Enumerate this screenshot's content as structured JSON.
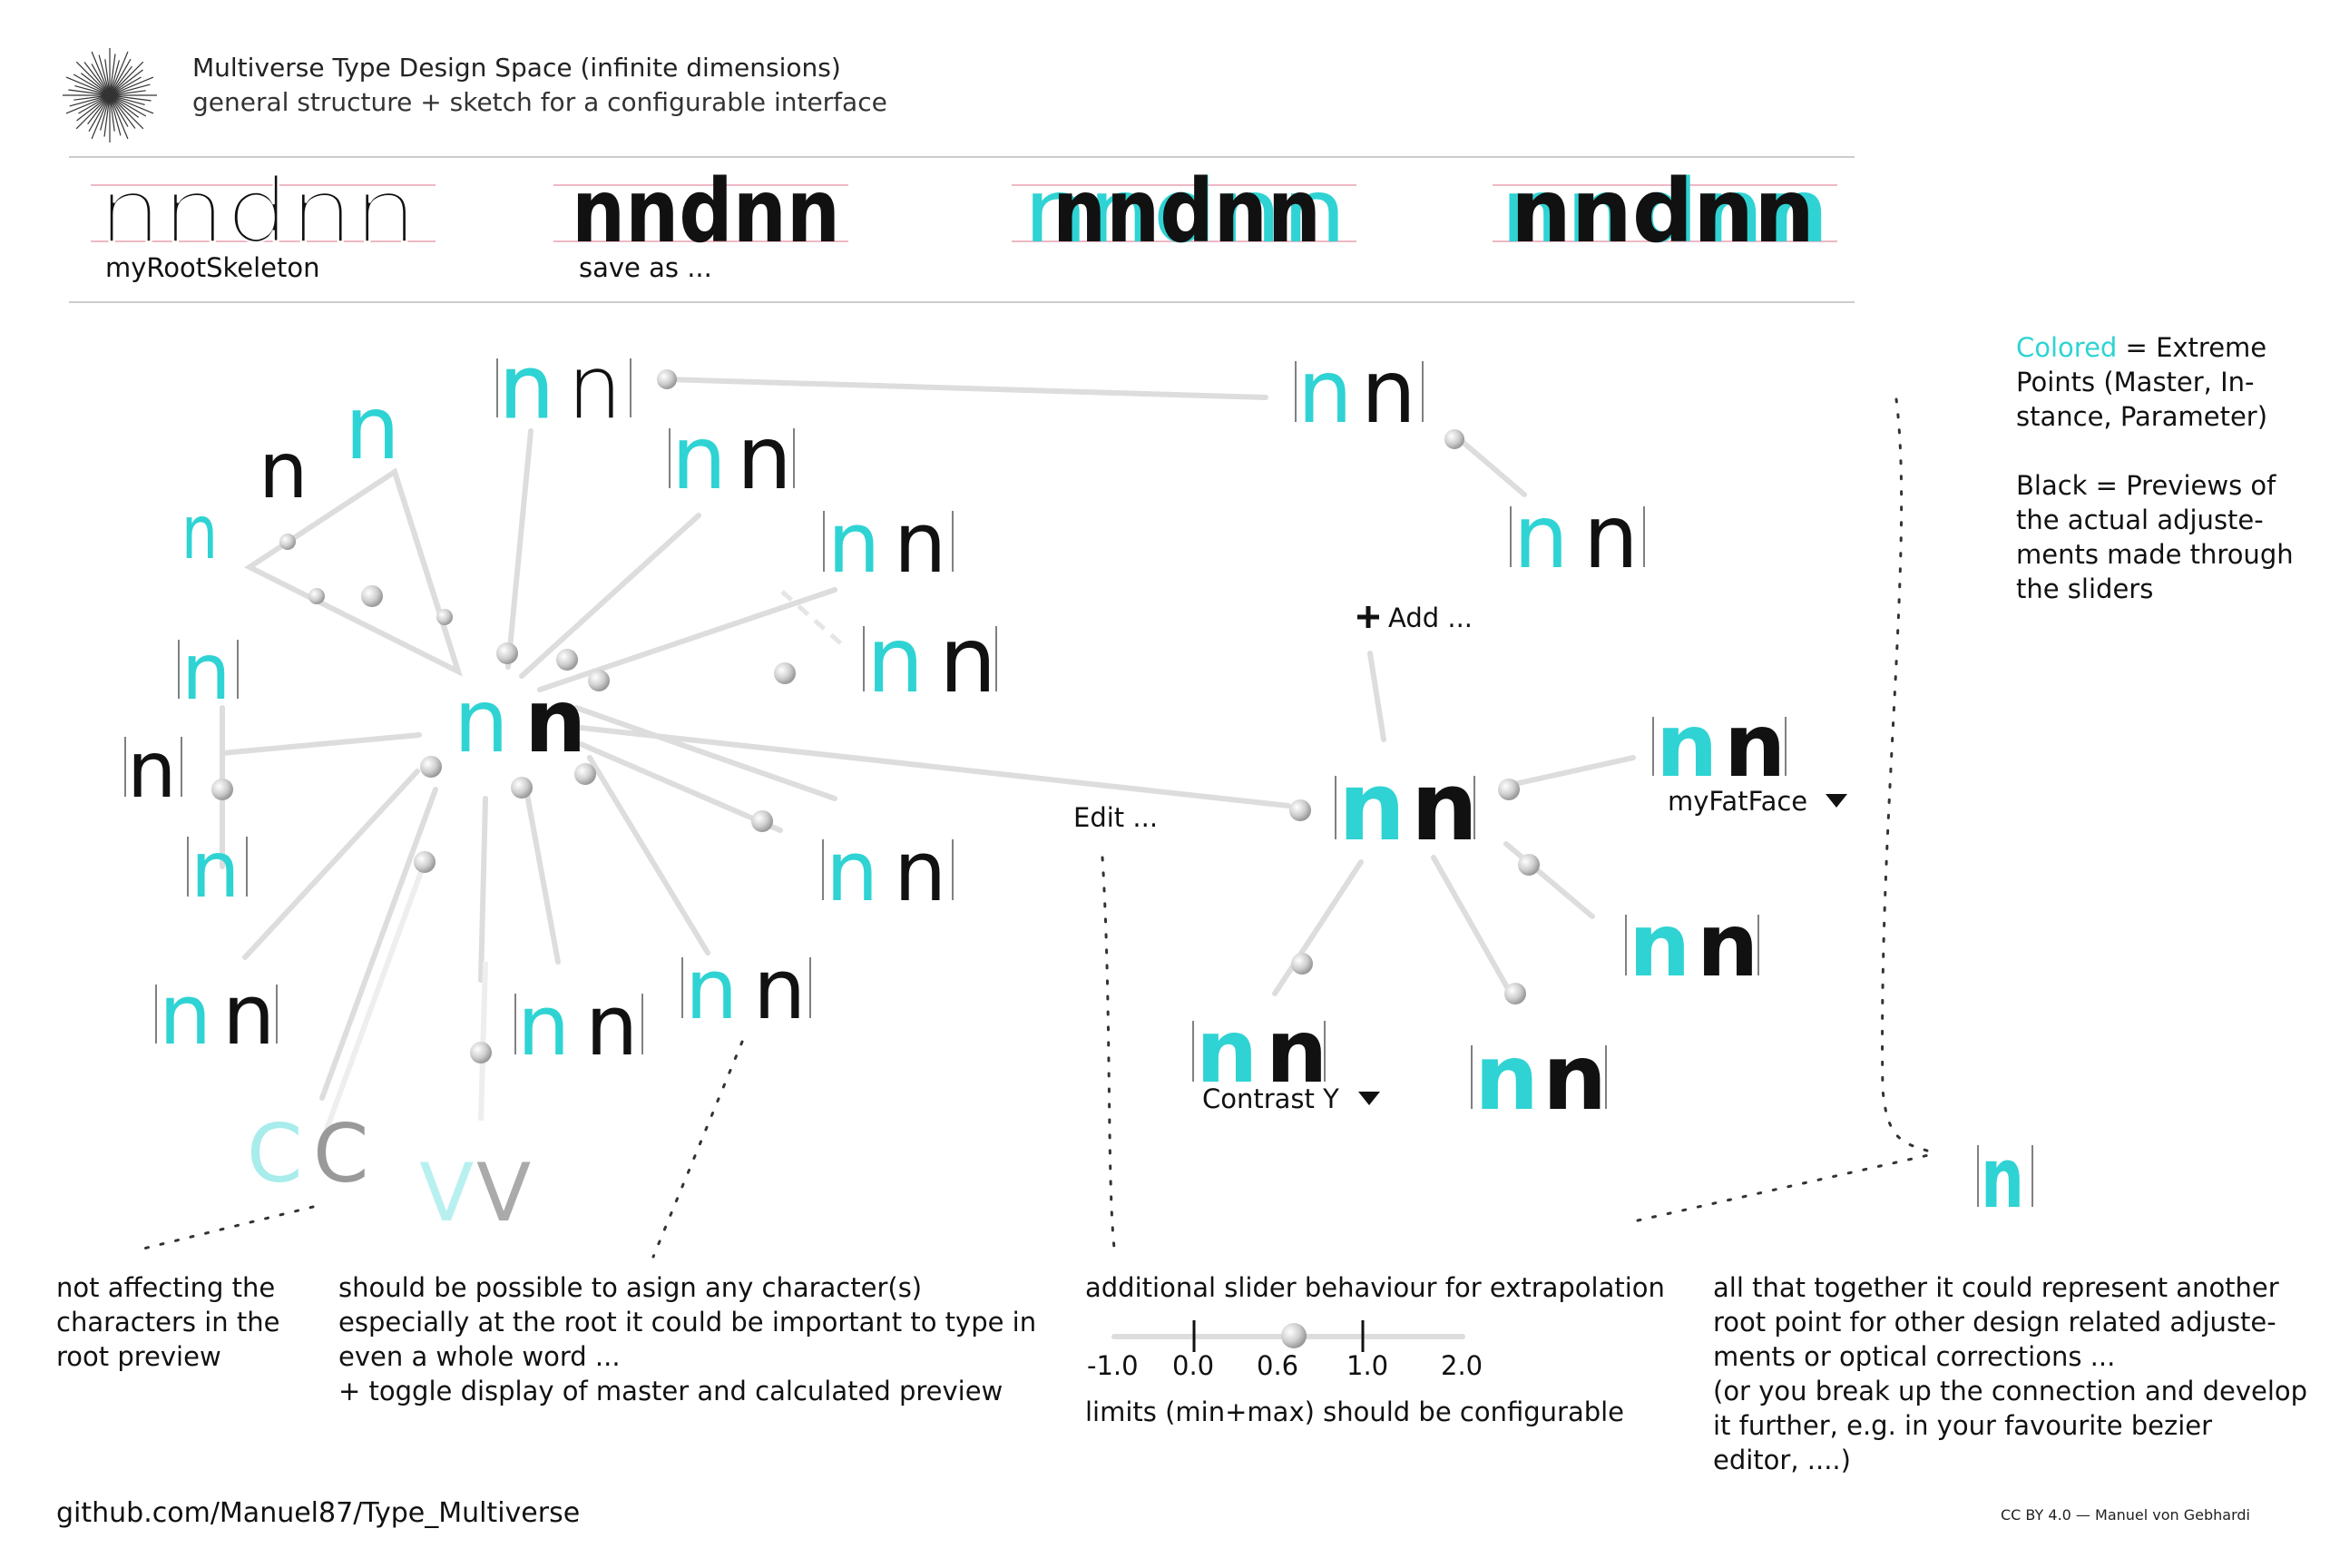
{
  "header": {
    "title": "Multiverse Type Design Space (infinite dimensions)",
    "subtitle": "general structure + sketch for a configurable interface"
  },
  "top_row": {
    "word": "nndnn",
    "items": [
      {
        "label": "myRootSkeleton"
      },
      {
        "label": "save as ..."
      },
      {
        "label": ""
      },
      {
        "label": ""
      }
    ]
  },
  "glyphs": {
    "n": "n",
    "c": "C",
    "v": "V"
  },
  "labels": {
    "add": "Add ...",
    "edit": "Edit ...",
    "my_fat_face": "myFatFace",
    "contrast_y": "Contrast Y"
  },
  "legend": {
    "colored_word": "Colored",
    "colored_rest_1": " = Extreme",
    "colored_rest_2": "Points (Master, In-",
    "colored_rest_3": "stance, Parameter)",
    "black_1": "Black = Previews of",
    "black_2": "the actual adjuste-",
    "black_3": "ments made through",
    "black_4": "the sliders"
  },
  "notes": {
    "not_affecting": [
      "not affecting the",
      "characters in the",
      "root preview"
    ],
    "assign": [
      "should be possible to asign any character(s)",
      "especially at the root it could be important to type in",
      "even a whole word ...",
      "+ toggle display of master and calculated preview"
    ],
    "slider_title": "additional slider behaviour for extrapolation",
    "slider_ticks": [
      "-1.0",
      "0.0",
      "0.6",
      "1.0",
      "2.0"
    ],
    "slider_limits": "limits (min+max) should be configurable",
    "together": [
      "all that together it could represent another",
      "root point for other design related adjuste-",
      "ments or optical corrections ...",
      "(or you break up the connection and develop",
      "it further, e.g. in your favourite bezier",
      "editor, ....)"
    ]
  },
  "footer": {
    "link": "github.com/Manuel87/Type_Multiverse",
    "credit": "CC BY 4.0 — Manuel von Gebhardi"
  },
  "colors": {
    "accent": "#2fd3d3",
    "line": "#dddddd",
    "guide": "#e8a0b0",
    "dots": "#333333"
  }
}
